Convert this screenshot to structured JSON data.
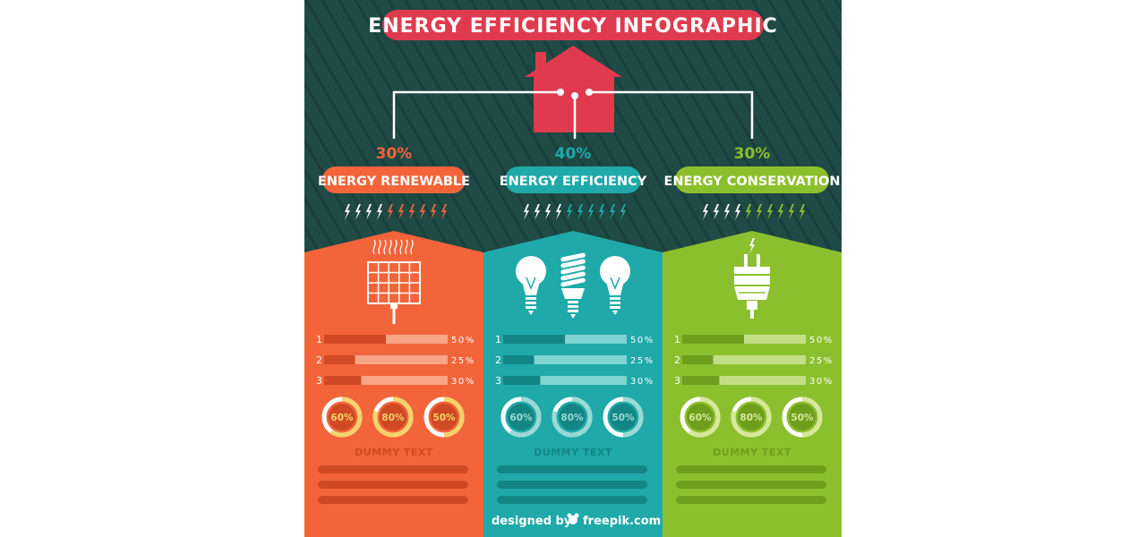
{
  "title": "ENERGY EFFICIENCY INFOGRAPHIC",
  "colors": {
    "background": "#1f4a45",
    "stripe": "#1a3f3b",
    "house": "#e03a4e",
    "title_pill": "#e03a4e",
    "connector": "#ffffff"
  },
  "house_icon": "house-icon",
  "columns": [
    {
      "key": "renewable",
      "label": "ENERGY RENEWABLE",
      "percent": "30%",
      "color": "#f2643a",
      "dark": "#cf4a24",
      "light": "#f8a487",
      "ring_track": "#f6d36a",
      "ring_fill": "#ffffff",
      "icon": "solar-panel-icon",
      "bolt_icon": "lightning-bolt-icon",
      "bars": [
        {
          "number": "1",
          "value": 50,
          "label": "50%"
        },
        {
          "number": "2",
          "value": 25,
          "label": "25%"
        },
        {
          "number": "3",
          "value": 30,
          "label": "30%"
        }
      ],
      "donuts": [
        {
          "value": 60,
          "label": "60%"
        },
        {
          "value": 80,
          "label": "80%"
        },
        {
          "value": 50,
          "label": "50%"
        }
      ],
      "dummy_text": "DUMMY TEXT"
    },
    {
      "key": "efficiency",
      "label": "ENERGY EFFICIENCY",
      "percent": "40%",
      "color": "#1fa9a9",
      "dark": "#148585",
      "light": "#7fd3d0",
      "ring_track": "#9ad9d5",
      "ring_fill": "#ffffff",
      "icon": "light-bulb-icon",
      "bolt_icon": "lightning-bolt-icon",
      "bars": [
        {
          "number": "1",
          "value": 50,
          "label": "50%"
        },
        {
          "number": "2",
          "value": 25,
          "label": "25%"
        },
        {
          "number": "3",
          "value": 30,
          "label": "30%"
        }
      ],
      "donuts": [
        {
          "value": 60,
          "label": "60%"
        },
        {
          "value": 80,
          "label": "80%"
        },
        {
          "value": 50,
          "label": "50%"
        }
      ],
      "dummy_text": "DUMMY TEXT"
    },
    {
      "key": "conservation",
      "label": "ENERGY CONSERVATION",
      "percent": "30%",
      "color": "#8cbf2e",
      "dark": "#6f9e1c",
      "light": "#c3df86",
      "ring_track": "#d6e89a",
      "ring_fill": "#ffffff",
      "icon": "power-plug-icon",
      "bolt_icon": "lightning-bolt-icon",
      "bars": [
        {
          "number": "1",
          "value": 50,
          "label": "50%"
        },
        {
          "number": "2",
          "value": 25,
          "label": "25%"
        },
        {
          "number": "3",
          "value": 30,
          "label": "30%"
        }
      ],
      "donuts": [
        {
          "value": 60,
          "label": "60%"
        },
        {
          "value": 80,
          "label": "80%"
        },
        {
          "value": 50,
          "label": "50%"
        }
      ],
      "dummy_text": "DUMMY TEXT"
    }
  ],
  "credit": {
    "prefix": "designed by",
    "brand": "freepik.com"
  }
}
